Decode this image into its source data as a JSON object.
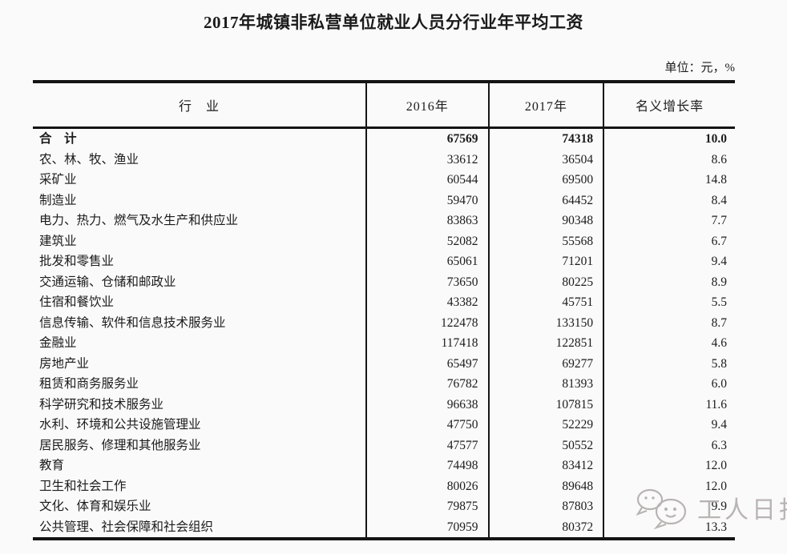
{
  "page": {
    "title": "2017年城镇非私营单位就业人员分行业年平均工资",
    "unit_label": "单位：元，%"
  },
  "header": {
    "industry": "行　业",
    "y2016": "2016年",
    "y2017": "2017年",
    "growth": "名义增长率"
  },
  "table": {
    "rows": [
      {
        "industry": "合　计",
        "y2016": "67569",
        "y2017": "74318",
        "growth": "10.0"
      },
      {
        "industry": "农、林、牧、渔业",
        "y2016": "33612",
        "y2017": "36504",
        "growth": "8.6"
      },
      {
        "industry": "采矿业",
        "y2016": "60544",
        "y2017": "69500",
        "growth": "14.8"
      },
      {
        "industry": "制造业",
        "y2016": "59470",
        "y2017": "64452",
        "growth": "8.4"
      },
      {
        "industry": "电力、热力、燃气及水生产和供应业",
        "y2016": "83863",
        "y2017": "90348",
        "growth": "7.7"
      },
      {
        "industry": "建筑业",
        "y2016": "52082",
        "y2017": "55568",
        "growth": "6.7"
      },
      {
        "industry": "批发和零售业",
        "y2016": "65061",
        "y2017": "71201",
        "growth": "9.4"
      },
      {
        "industry": "交通运输、仓储和邮政业",
        "y2016": "73650",
        "y2017": "80225",
        "growth": "8.9"
      },
      {
        "industry": "住宿和餐饮业",
        "y2016": "43382",
        "y2017": "45751",
        "growth": "5.5"
      },
      {
        "industry": "信息传输、软件和信息技术服务业",
        "y2016": "122478",
        "y2017": "133150",
        "growth": "8.7"
      },
      {
        "industry": "金融业",
        "y2016": "117418",
        "y2017": "122851",
        "growth": "4.6"
      },
      {
        "industry": "房地产业",
        "y2016": "65497",
        "y2017": "69277",
        "growth": "5.8"
      },
      {
        "industry": "租赁和商务服务业",
        "y2016": "76782",
        "y2017": "81393",
        "growth": "6.0"
      },
      {
        "industry": "科学研究和技术服务业",
        "y2016": "96638",
        "y2017": "107815",
        "growth": "11.6"
      },
      {
        "industry": "水利、环境和公共设施管理业",
        "y2016": "47750",
        "y2017": "52229",
        "growth": "9.4"
      },
      {
        "industry": "居民服务、修理和其他服务业",
        "y2016": "47577",
        "y2017": "50552",
        "growth": "6.3"
      },
      {
        "industry": "教育",
        "y2016": "74498",
        "y2017": "83412",
        "growth": "12.0"
      },
      {
        "industry": "卫生和社会工作",
        "y2016": "80026",
        "y2017": "89648",
        "growth": "12.0"
      },
      {
        "industry": "文化、体育和娱乐业",
        "y2016": "79875",
        "y2017": "87803",
        "growth": "9.9"
      },
      {
        "industry": "公共管理、社会保障和社会组织",
        "y2016": "70959",
        "y2017": "80372",
        "growth": "13.3"
      }
    ]
  },
  "watermark": {
    "text": "工人日报",
    "icon": "chat-bubbles-logo",
    "color": "#b4afaf"
  },
  "chart_data": {
    "type": "table",
    "title": "2017年城镇非私营单位就业人员分行业年平均工资",
    "unit": "元，%",
    "columns": [
      "行业",
      "2016年",
      "2017年",
      "名义增长率"
    ],
    "rows": [
      [
        "合计",
        67569,
        74318,
        10.0
      ],
      [
        "农、林、牧、渔业",
        33612,
        36504,
        8.6
      ],
      [
        "采矿业",
        60544,
        69500,
        14.8
      ],
      [
        "制造业",
        59470,
        64452,
        8.4
      ],
      [
        "电力、热力、燃气及水生产和供应业",
        83863,
        90348,
        7.7
      ],
      [
        "建筑业",
        52082,
        55568,
        6.7
      ],
      [
        "批发和零售业",
        65061,
        71201,
        9.4
      ],
      [
        "交通运输、仓储和邮政业",
        73650,
        80225,
        8.9
      ],
      [
        "住宿和餐饮业",
        43382,
        45751,
        5.5
      ],
      [
        "信息传输、软件和信息技术服务业",
        122478,
        133150,
        8.7
      ],
      [
        "金融业",
        117418,
        122851,
        4.6
      ],
      [
        "房地产业",
        65497,
        69277,
        5.8
      ],
      [
        "租赁和商务服务业",
        76782,
        81393,
        6.0
      ],
      [
        "科学研究和技术服务业",
        96638,
        107815,
        11.6
      ],
      [
        "水利、环境和公共设施管理业",
        47750,
        52229,
        9.4
      ],
      [
        "居民服务、修理和其他服务业",
        47577,
        50552,
        6.3
      ],
      [
        "教育",
        74498,
        83412,
        12.0
      ],
      [
        "卫生和社会工作",
        80026,
        89648,
        12.0
      ],
      [
        "文化、体育和娱乐业",
        79875,
        87803,
        9.9
      ],
      [
        "公共管理、社会保障和社会组织",
        70959,
        80372,
        13.3
      ]
    ]
  }
}
